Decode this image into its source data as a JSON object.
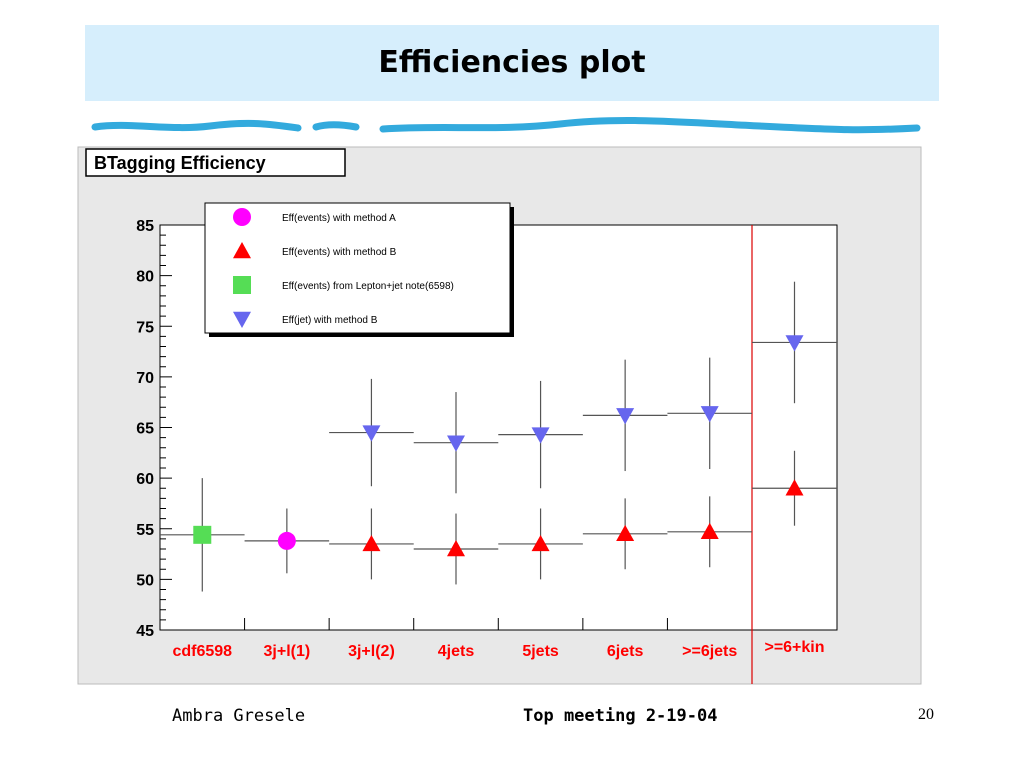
{
  "slide": {
    "title": "Efficiencies plot",
    "footer_left": "Ambra Gresele",
    "footer_center": "Top meeting 2-19-04",
    "page_number": "20"
  },
  "colors": {
    "title_band": "#d6eefc",
    "frame_bg": "#e8e8e8",
    "plot_bg": "#ffffff",
    "method_a": "#ff00ff",
    "method_b": "#ff0000",
    "lepton_jet": "#55dd55",
    "jet_method_b": "#6666ee",
    "category_text": "#ff0000",
    "separator_line": "#dd0000",
    "deco_wave": "#33aadd"
  },
  "chart_data": {
    "type": "scatter",
    "title": "BTagging Efficiency",
    "xlabel": "",
    "ylabel": "",
    "ylim": [
      45,
      85
    ],
    "yticks": [
      "45",
      "50",
      "55",
      "60",
      "65",
      "70",
      "75",
      "80",
      "85"
    ],
    "grid": false,
    "legend_position": "top-left",
    "categories": [
      "cdf6598",
      "3j+l(1)",
      "3j+l(2)",
      "4jets",
      "5jets",
      "6jets",
      ">=6jets",
      ">=6+kin"
    ],
    "separator_after_category": ">=6jets",
    "series": [
      {
        "name": "Eff(events) with method A",
        "marker": "circle",
        "color_key": "method_a",
        "points": [
          {
            "category": "3j+l(1)",
            "y": 53.8,
            "err": 3.2
          }
        ]
      },
      {
        "name": "Eff(events) with method B",
        "marker": "triangle-up",
        "color_key": "method_b",
        "points": [
          {
            "category": "3j+l(2)",
            "y": 53.5,
            "err": 3.5
          },
          {
            "category": "4jets",
            "y": 53.0,
            "err": 3.5
          },
          {
            "category": "5jets",
            "y": 53.5,
            "err": 3.5
          },
          {
            "category": "6jets",
            "y": 54.5,
            "err": 3.5
          },
          {
            "category": ">=6jets",
            "y": 54.7,
            "err": 3.5
          },
          {
            "category": ">=6+kin",
            "y": 59.0,
            "err": 3.7
          }
        ]
      },
      {
        "name": "Eff(events) from Lepton+jet note(6598)",
        "marker": "square",
        "color_key": "lepton_jet",
        "points": [
          {
            "category": "cdf6598",
            "y": 54.4,
            "err": 5.6
          }
        ]
      },
      {
        "name": "Eff(jet) with method B",
        "marker": "triangle-down",
        "color_key": "jet_method_b",
        "points": [
          {
            "category": "3j+l(2)",
            "y": 64.5,
            "err": 5.3
          },
          {
            "category": "4jets",
            "y": 63.5,
            "err": 5.0
          },
          {
            "category": "5jets",
            "y": 64.3,
            "err": 5.3
          },
          {
            "category": "6jets",
            "y": 66.2,
            "err": 5.5
          },
          {
            "category": ">=6jets",
            "y": 66.4,
            "err": 5.5
          },
          {
            "category": ">=6+kin",
            "y": 73.4,
            "err": 6.0
          }
        ]
      }
    ]
  }
}
